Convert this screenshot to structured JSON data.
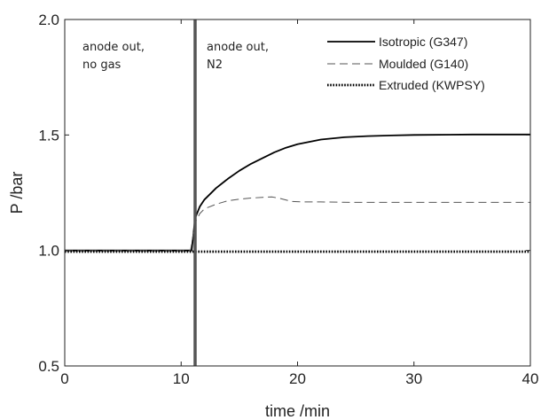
{
  "chart_data": {
    "type": "line",
    "title": "",
    "xlabel": "time /min",
    "ylabel": "P /bar",
    "xlim": [
      0,
      40
    ],
    "ylim": [
      0.5,
      2.0
    ],
    "xticks": [
      0,
      10,
      20,
      30,
      40
    ],
    "xtick_labels": [
      "0",
      "10",
      "20",
      "30",
      "40"
    ],
    "yticks": [
      0.5,
      1.0,
      1.5,
      2.0
    ],
    "ytick_labels": [
      "0.5",
      "1.0",
      "1.5",
      "2.0"
    ],
    "grid": false,
    "legend_position": "top-right",
    "vertical_marker": {
      "x": 11.2,
      "color": "#555555"
    },
    "annotations": [
      {
        "id": "left-region",
        "lines": [
          "anode out,",
          "no gas"
        ]
      },
      {
        "id": "right-region",
        "lines": [
          "anode out,",
          "N2"
        ]
      }
    ],
    "series": [
      {
        "name": "Isotropic (G347)",
        "style": "solid",
        "color": "#000000",
        "x": [
          0,
          5,
          10,
          10.9,
          11.2,
          11.6,
          12,
          13,
          14,
          15,
          16,
          17,
          18,
          19,
          20,
          22,
          24,
          26,
          28,
          30,
          35,
          40
        ],
        "y": [
          1.0,
          1.0,
          1.0,
          1.0,
          1.14,
          1.19,
          1.22,
          1.27,
          1.31,
          1.345,
          1.375,
          1.4,
          1.425,
          1.445,
          1.46,
          1.48,
          1.49,
          1.495,
          1.498,
          1.5,
          1.502,
          1.502
        ]
      },
      {
        "name": "Moulded (G140)",
        "style": "dashed",
        "color": "#555555",
        "x": [
          0,
          5,
          10,
          10.8,
          11.2,
          11.6,
          12,
          13,
          14,
          15,
          16,
          17,
          17.8,
          18.5,
          19.5,
          20.5,
          22,
          25,
          30,
          35,
          40
        ],
        "y": [
          1.0,
          1.0,
          1.0,
          1.0,
          1.12,
          1.16,
          1.18,
          1.2,
          1.215,
          1.222,
          1.227,
          1.23,
          1.232,
          1.225,
          1.212,
          1.21,
          1.21,
          1.208,
          1.208,
          1.208,
          1.208
        ]
      },
      {
        "name": "Extruded (KWPSY)",
        "style": "dotted",
        "color": "#000000",
        "x": [
          0,
          10,
          20,
          30,
          40
        ],
        "y": [
          0.995,
          0.995,
          0.995,
          0.995,
          0.995
        ]
      }
    ]
  }
}
